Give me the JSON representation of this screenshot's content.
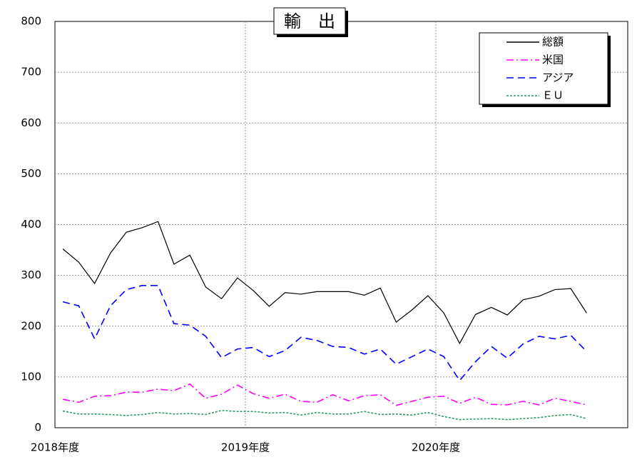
{
  "chart_data": {
    "type": "line",
    "title": "輸　出",
    "categories": [
      "2018年度",
      null,
      null,
      null,
      null,
      null,
      null,
      null,
      null,
      null,
      null,
      null,
      "2019年度",
      null,
      null,
      null,
      null,
      null,
      null,
      null,
      null,
      null,
      null,
      null,
      "2020年度",
      null,
      null,
      null,
      null,
      null,
      null,
      null,
      null,
      null
    ],
    "series": [
      {
        "name": "総額",
        "color": "#000000",
        "dash": "solid",
        "values": [
          352,
          326,
          284,
          344,
          385,
          394,
          406,
          322,
          340,
          277,
          254,
          295,
          270,
          239,
          266,
          263,
          268,
          268,
          268,
          261,
          275,
          208,
          232,
          260,
          226,
          166,
          223,
          237,
          222,
          252,
          259,
          272,
          274,
          226
        ]
      },
      {
        "name": "米国",
        "color": "#ff00ff",
        "dash": "dashdot",
        "values": [
          56,
          50,
          62,
          63,
          70,
          70,
          76,
          73,
          86,
          58,
          66,
          84,
          67,
          58,
          66,
          52,
          50,
          65,
          53,
          63,
          65,
          44,
          52,
          60,
          62,
          48,
          60,
          46,
          45,
          52,
          45,
          58,
          52,
          45
        ]
      },
      {
        "name": "アジア",
        "color": "#0000ff",
        "dash": "dash",
        "values": [
          248,
          240,
          175,
          240,
          272,
          280,
          280,
          205,
          202,
          180,
          138,
          155,
          158,
          140,
          152,
          178,
          172,
          160,
          158,
          145,
          155,
          125,
          140,
          155,
          140,
          93,
          130,
          160,
          137,
          165,
          180,
          175,
          182,
          150
        ]
      },
      {
        "name": "ＥＵ",
        "color": "#339966",
        "dash": "dot",
        "values": [
          33,
          27,
          27,
          26,
          24,
          26,
          30,
          27,
          28,
          26,
          34,
          32,
          32,
          29,
          30,
          25,
          30,
          27,
          27,
          32,
          26,
          27,
          25,
          30,
          22,
          16,
          17,
          18,
          16,
          18,
          20,
          24,
          26,
          18
        ]
      }
    ],
    "ylim": [
      0,
      800
    ],
    "yticks": [
      0,
      100,
      200,
      300,
      400,
      500,
      600,
      700,
      800
    ],
    "grid": true,
    "legend": "top-right"
  }
}
